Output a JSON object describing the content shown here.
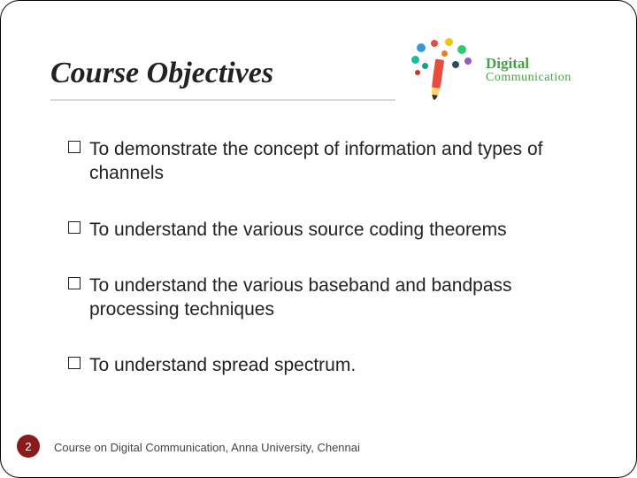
{
  "title": "Course Objectives",
  "logo": {
    "line1": "Digital",
    "line2": "Communication"
  },
  "objectives": [
    "To demonstrate the concept of information and types of channels",
    "To understand the various source coding theorems",
    "To understand the various baseband and bandpass processing techniques",
    "To understand spread spectrum."
  ],
  "page_number": "2",
  "footer": "Course on Digital Communication, Anna University, Chennai",
  "colors": {
    "badge_bg": "#8b1a1a",
    "title_color": "#222222",
    "logo_text": "#4a9d4a"
  }
}
